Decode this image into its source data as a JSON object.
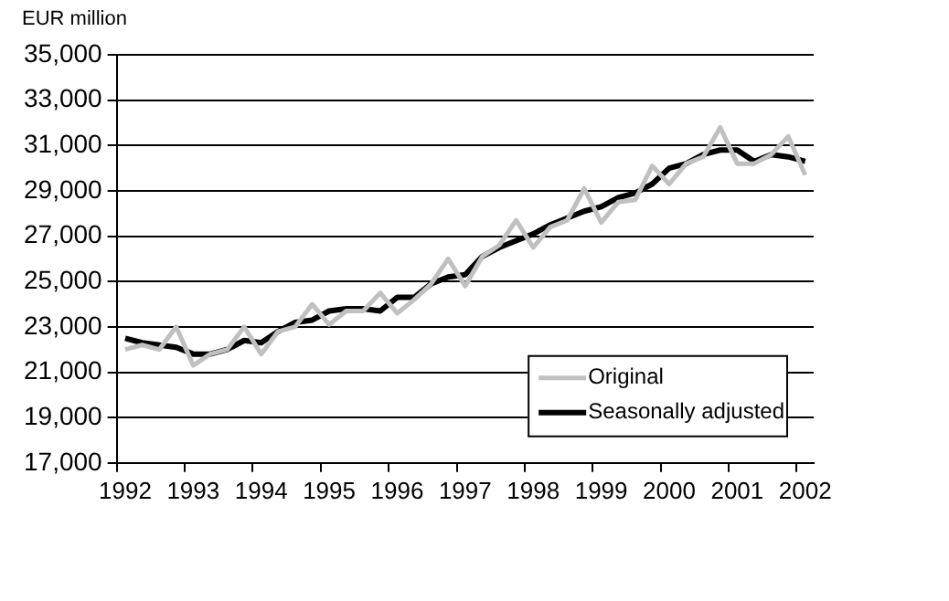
{
  "chart_data": {
    "type": "line",
    "ylabel": "EUR million",
    "categories": [
      "1992",
      null,
      null,
      null,
      "1993",
      null,
      null,
      null,
      "1994",
      null,
      null,
      null,
      "1995",
      null,
      null,
      null,
      "1996",
      null,
      null,
      null,
      "1997",
      null,
      null,
      null,
      "1998",
      null,
      null,
      null,
      "1999",
      null,
      null,
      null,
      "2000",
      null,
      null,
      null,
      "2001",
      null,
      null,
      null,
      "2002"
    ],
    "series": [
      {
        "name": "Original",
        "color": "#c0c0c0",
        "values": [
          22000,
          22200,
          22000,
          23000,
          21300,
          21800,
          22000,
          23000,
          21800,
          22800,
          23000,
          24000,
          23100,
          23700,
          23700,
          24500,
          23600,
          24200,
          24900,
          26000,
          24800,
          26100,
          26600,
          27700,
          26500,
          27400,
          27700,
          29100,
          27600,
          28500,
          28600,
          30100,
          29300,
          30200,
          30500,
          31800,
          30200,
          30200,
          30600,
          31400,
          29700
        ]
      },
      {
        "name": "Seasonally adjusted",
        "color": "#000000",
        "values": [
          22500,
          22300,
          22200,
          22100,
          21800,
          21800,
          22000,
          22400,
          22300,
          22800,
          23200,
          23300,
          23700,
          23800,
          23800,
          23700,
          24300,
          24300,
          24900,
          25200,
          25300,
          26100,
          26500,
          26800,
          27100,
          27500,
          27800,
          28100,
          28300,
          28700,
          28900,
          29300,
          30000,
          30200,
          30600,
          30800,
          30800,
          30300,
          30600,
          30500,
          30300
        ]
      }
    ],
    "ylim": [
      17000,
      35000
    ],
    "yticks": [
      {
        "value": 17000,
        "label": "17,000"
      },
      {
        "value": 19000,
        "label": "19,000"
      },
      {
        "value": 21000,
        "label": "21,000"
      },
      {
        "value": 23000,
        "label": "23,000"
      },
      {
        "value": 25000,
        "label": "25,000"
      },
      {
        "value": 27000,
        "label": "27,000"
      },
      {
        "value": 29000,
        "label": "29,000"
      },
      {
        "value": 31000,
        "label": "31,000"
      },
      {
        "value": 33000,
        "label": "33,000"
      },
      {
        "value": 35000,
        "label": "35,000"
      }
    ],
    "grid": "y",
    "legend": "bottom right",
    "marker": "none",
    "line_style": "solid"
  }
}
